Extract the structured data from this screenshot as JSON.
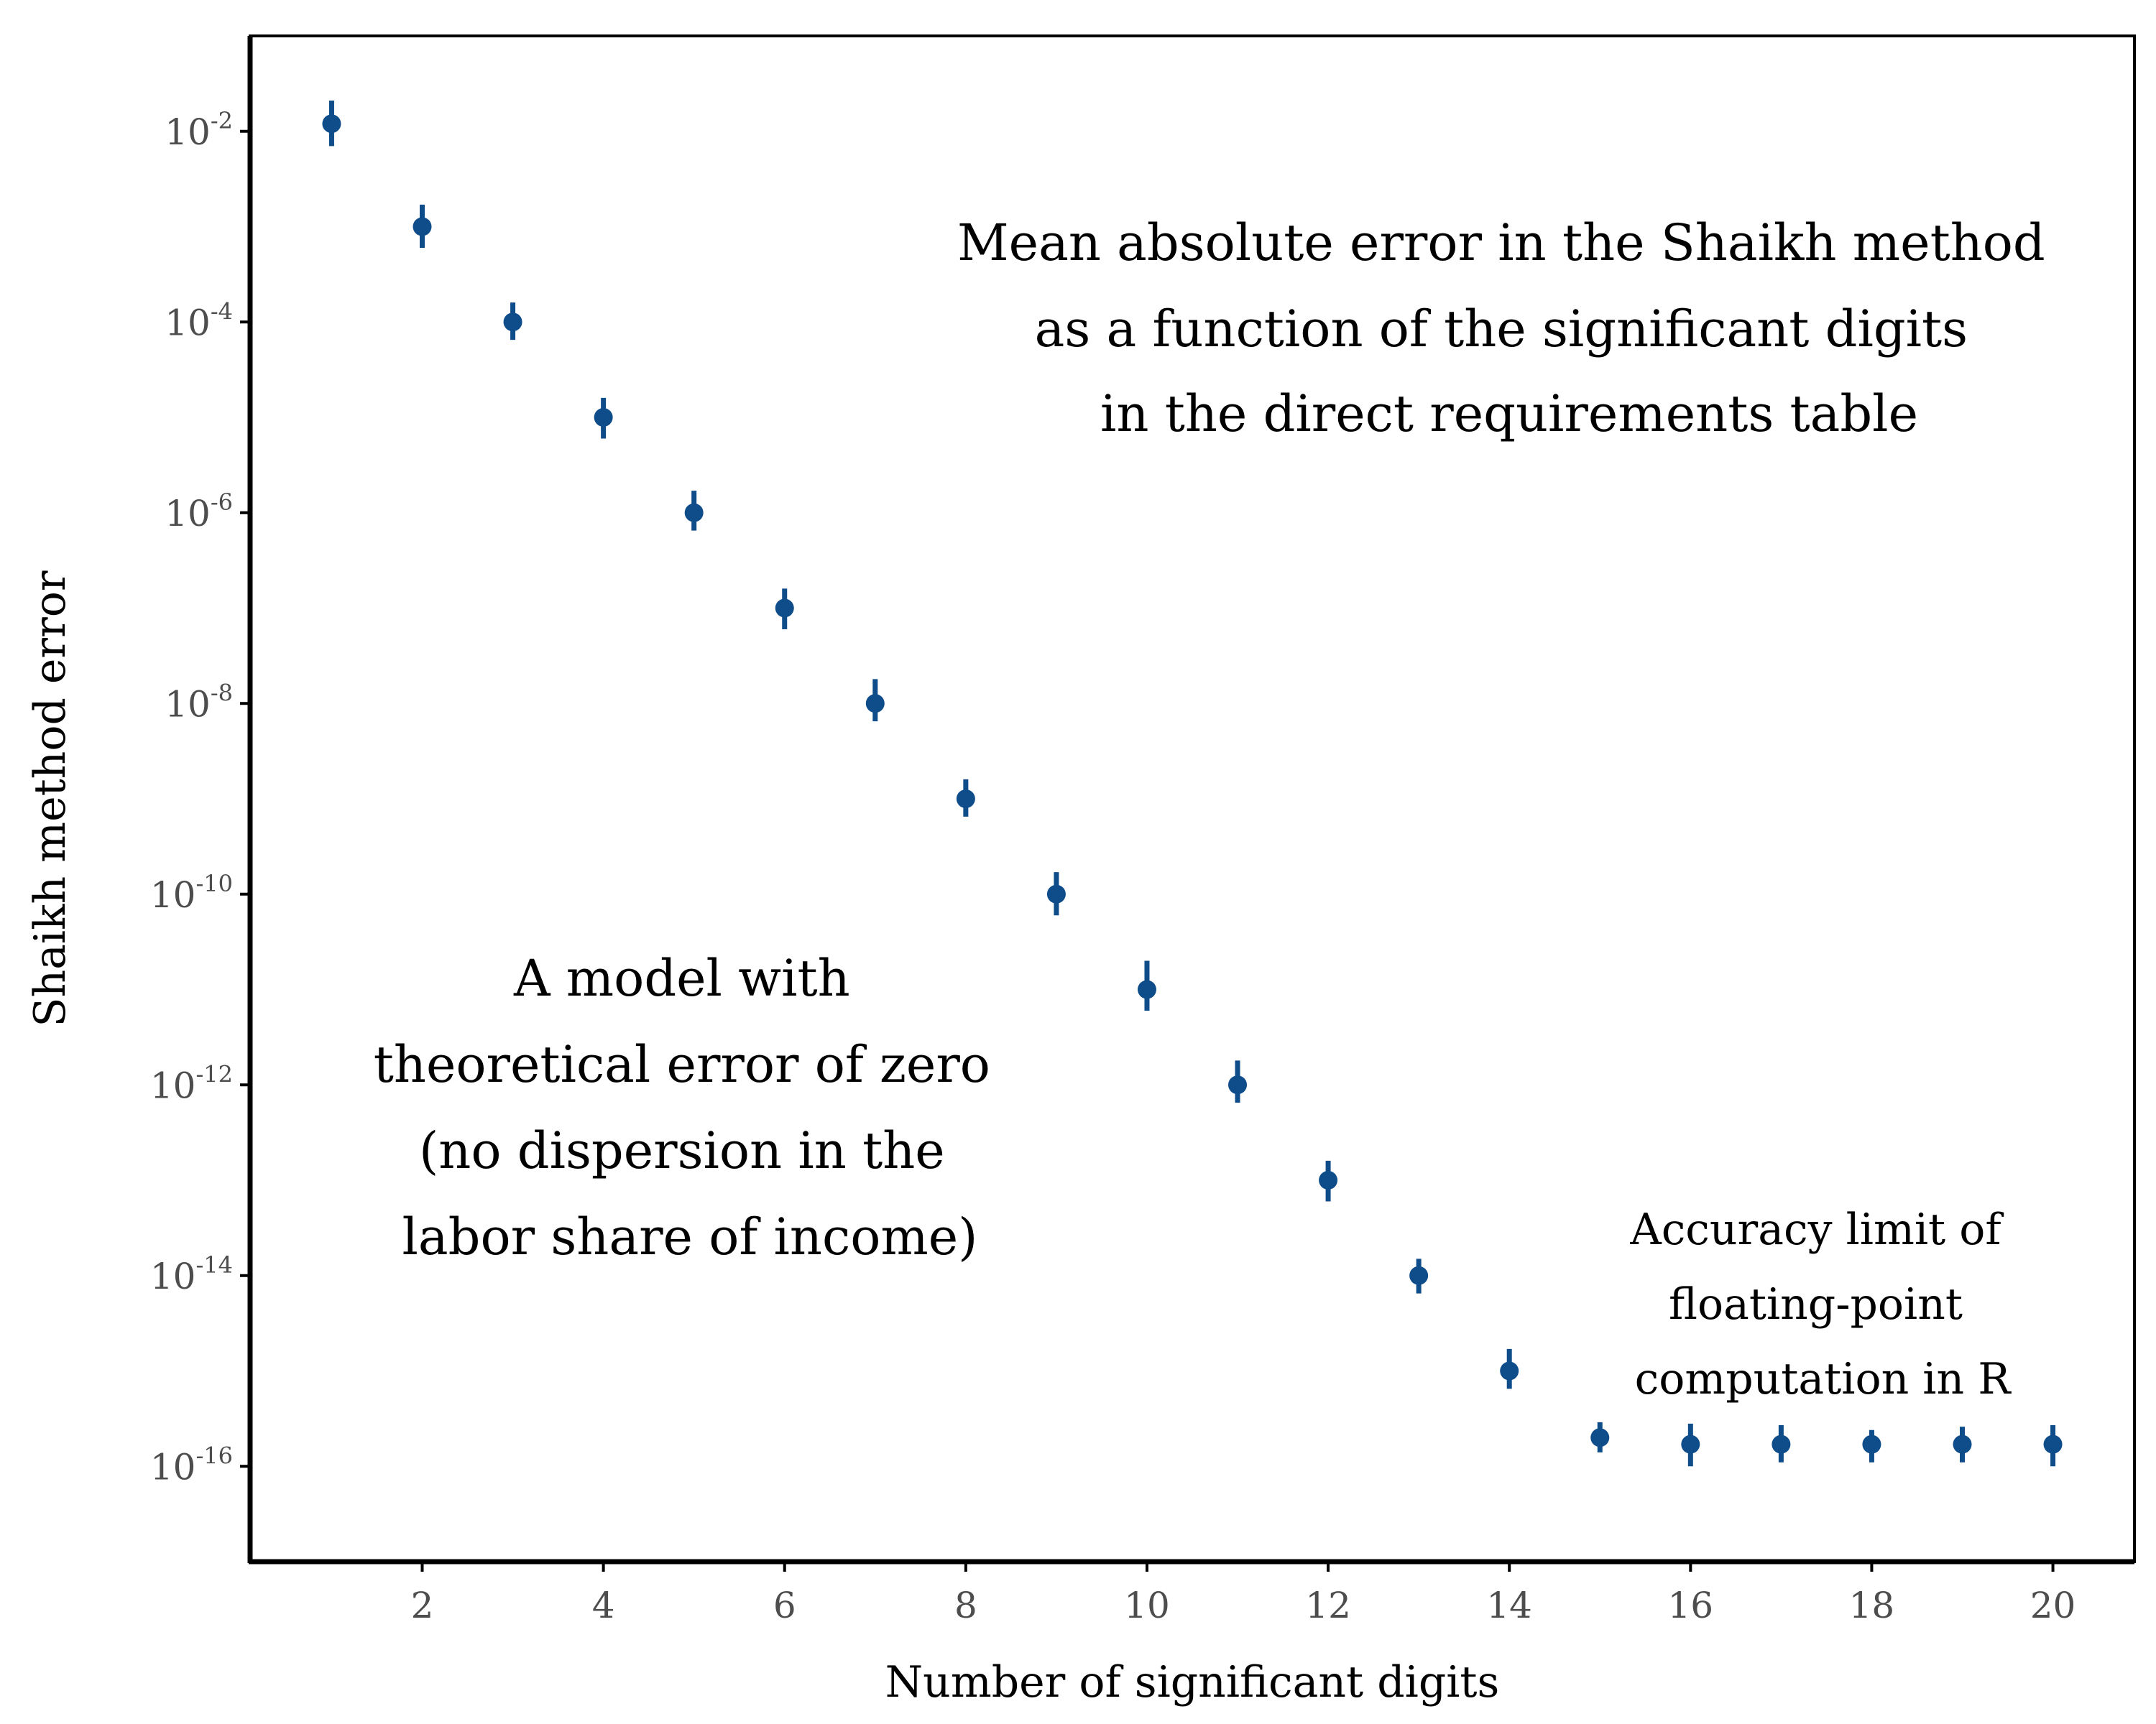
{
  "chart_data": {
    "type": "scatter",
    "xlabel": "Number of significant digits",
    "ylabel": "Shaikh method error",
    "y_scale": "log10",
    "ylim": [
      1e-17,
      0.1
    ],
    "xlim": [
      0.1,
      20.9
    ],
    "x_ticks": [
      2,
      4,
      6,
      8,
      10,
      12,
      14,
      16,
      18,
      20
    ],
    "y_ticks": [
      {
        "base": "10",
        "exp": "-2",
        "value": 0.01
      },
      {
        "base": "10",
        "exp": "-4",
        "value": 0.0001
      },
      {
        "base": "10",
        "exp": "-6",
        "value": 1e-06
      },
      {
        "base": "10",
        "exp": "-8",
        "value": 1e-08
      },
      {
        "base": "10",
        "exp": "-10",
        "value": 1e-10
      },
      {
        "base": "10",
        "exp": "-12",
        "value": 1e-12
      },
      {
        "base": "10",
        "exp": "-14",
        "value": 1e-14
      },
      {
        "base": "10",
        "exp": "-16",
        "value": 1e-16
      }
    ],
    "point_color": "#0f4c8a",
    "points": [
      {
        "x": 1,
        "y": 0.012,
        "ylow": 0.007,
        "yhigh": 0.021
      },
      {
        "x": 2,
        "y": 0.001,
        "ylow": 0.0006,
        "yhigh": 0.0017
      },
      {
        "x": 3,
        "y": 0.0001,
        "ylow": 6.5e-05,
        "yhigh": 0.00016
      },
      {
        "x": 4,
        "y": 1e-05,
        "ylow": 6e-06,
        "yhigh": 1.6e-05
      },
      {
        "x": 5,
        "y": 1e-06,
        "ylow": 6.5e-07,
        "yhigh": 1.7e-06
      },
      {
        "x": 6,
        "y": 1e-07,
        "ylow": 6e-08,
        "yhigh": 1.6e-07
      },
      {
        "x": 7,
        "y": 1e-08,
        "ylow": 6.5e-09,
        "yhigh": 1.8e-08
      },
      {
        "x": 8,
        "y": 1e-09,
        "ylow": 6.5e-10,
        "yhigh": 1.6e-09
      },
      {
        "x": 9,
        "y": 1e-10,
        "ylow": 6e-11,
        "yhigh": 1.7e-10
      },
      {
        "x": 10,
        "y": 1e-11,
        "ylow": 6e-12,
        "yhigh": 2e-11
      },
      {
        "x": 11,
        "y": 1e-12,
        "ylow": 6.5e-13,
        "yhigh": 1.8e-12
      },
      {
        "x": 12,
        "y": 1e-13,
        "ylow": 6e-14,
        "yhigh": 1.6e-13
      },
      {
        "x": 13,
        "y": 1e-14,
        "ylow": 6.5e-15,
        "yhigh": 1.5e-14
      },
      {
        "x": 14,
        "y": 1e-15,
        "ylow": 6.5e-16,
        "yhigh": 1.7e-15
      },
      {
        "x": 15,
        "y": 2e-16,
        "ylow": 1.4e-16,
        "yhigh": 2.9e-16
      },
      {
        "x": 16,
        "y": 1.7e-16,
        "ylow": 1e-16,
        "yhigh": 2.8e-16
      },
      {
        "x": 17,
        "y": 1.7e-16,
        "ylow": 1.1e-16,
        "yhigh": 2.7e-16
      },
      {
        "x": 18,
        "y": 1.7e-16,
        "ylow": 1.1e-16,
        "yhigh": 2.4e-16
      },
      {
        "x": 19,
        "y": 1.7e-16,
        "ylow": 1.1e-16,
        "yhigh": 2.6e-16
      },
      {
        "x": 20,
        "y": 1.7e-16,
        "ylow": 1e-16,
        "yhigh": 2.7e-16
      }
    ],
    "annotations": {
      "title_lines": [
        "Mean absolute error in the Shaikh method",
        "as a function of the significant digits",
        "in the direct requirements table"
      ],
      "zero_model_lines": [
        "A model with",
        "theoretical error of zero",
        "(no dispersion in the",
        "labor share of income)"
      ],
      "accuracy_lines": [
        "Accuracy limit of",
        "floating-point",
        "computation in R"
      ]
    }
  }
}
